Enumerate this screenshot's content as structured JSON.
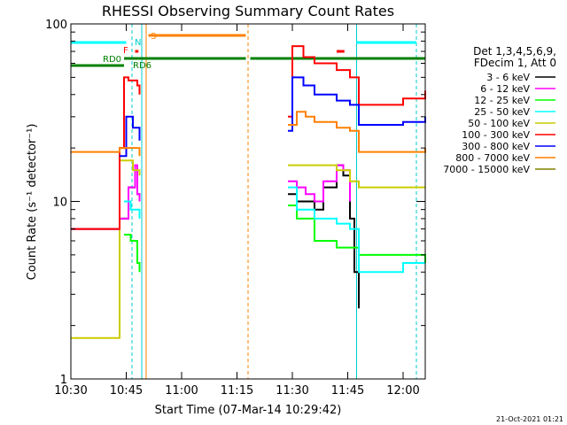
{
  "chart_data": {
    "type": "line",
    "title": "RHESSI Observing Summary Count Rates",
    "xlabel": "Start Time (07-Mar-14 10:29:42)",
    "ylabel": "Count Rate (s⁻¹ detector⁻¹)",
    "yscale": "log",
    "ylim": [
      1,
      100
    ],
    "xlim_minutes": [
      10.5,
      12.1
    ],
    "x_ticks": [
      {
        "label": "10:30",
        "t": 10.5
      },
      {
        "label": "10:45",
        "t": 10.75
      },
      {
        "label": "11:00",
        "t": 11.0
      },
      {
        "label": "11:15",
        "t": 11.25
      },
      {
        "label": "11:30",
        "t": 11.5
      },
      {
        "label": "11:45",
        "t": 11.75
      },
      {
        "label": "12:00",
        "t": 12.0
      }
    ],
    "y_ticks": [
      {
        "label": "1",
        "v": 1
      },
      {
        "label": "10",
        "v": 10
      },
      {
        "label": "100",
        "v": 100
      }
    ],
    "legend_header": [
      "Det 1,3,4,5,6,9,",
      "FDecim 1, Att 0"
    ],
    "legend_placement": "right",
    "series": [
      {
        "name": "3 - 6 keV",
        "color": "#000000",
        "x": [
          10.5,
          10.7,
          10.72,
          10.76,
          10.79,
          10.8,
          10.81,
          11.48,
          11.52,
          11.6,
          11.64,
          11.7,
          11.73,
          11.76,
          11.78,
          11.8
        ],
        "y": [
          7,
          7,
          8,
          12,
          15,
          11,
          10,
          11,
          10,
          9,
          12,
          16,
          14,
          8,
          4,
          2.5
        ]
      },
      {
        "name": "6 - 12 keV",
        "color": "#ff00ff",
        "x": [
          10.5,
          10.7,
          10.72,
          10.76,
          10.79,
          10.8,
          10.81,
          11.48,
          11.52,
          11.56,
          11.6,
          11.64,
          11.7,
          11.73,
          11.76
        ],
        "y": [
          7,
          7,
          8,
          12,
          16,
          11,
          10,
          13,
          12,
          11,
          10,
          13,
          16,
          15,
          10
        ]
      },
      {
        "name": "12 - 25 keV",
        "color": "#00ff00",
        "x": [
          10.74,
          10.77,
          10.8,
          10.81,
          11.48,
          11.52,
          11.6,
          11.7,
          11.76,
          11.8,
          12.1
        ],
        "y": [
          6.5,
          6,
          4.5,
          4,
          9.5,
          8,
          6,
          5.5,
          5.5,
          5,
          4.5
        ]
      },
      {
        "name": "25 - 50 keV",
        "color": "#00ffff",
        "x": [
          10.74,
          10.77,
          10.8,
          10.81,
          11.48,
          11.52,
          11.6,
          11.7,
          11.76,
          11.8,
          12.0,
          12.1
        ],
        "y": [
          10,
          9,
          9,
          8,
          12,
          9,
          8,
          7.5,
          7,
          4,
          4.5,
          4.5
        ]
      },
      {
        "name": "50 - 100 keV",
        "color": "#cccc00",
        "x": [
          10.5,
          10.7,
          10.72,
          10.75,
          10.78,
          10.81,
          11.48,
          11.55,
          11.6,
          11.7,
          11.76,
          11.8,
          12.0,
          12.1
        ],
        "y": [
          1.7,
          1.7,
          17,
          17,
          15,
          14,
          16,
          16,
          16,
          15,
          13,
          12,
          12,
          12
        ]
      },
      {
        "name": "100 - 300 keV",
        "color": "#ff0000",
        "x": [
          10.5,
          10.7,
          10.72,
          10.74,
          10.76,
          10.8,
          10.81,
          11.48,
          11.5,
          11.55,
          11.6,
          11.7,
          11.76,
          11.8,
          12.0,
          12.1
        ],
        "y": [
          7,
          7,
          20,
          50,
          48,
          45,
          40,
          30,
          75,
          65,
          60,
          55,
          50,
          35,
          38,
          42
        ]
      },
      {
        "name": "300 - 800 keV",
        "color": "#0000ff",
        "x": [
          10.72,
          10.75,
          10.78,
          10.81,
          11.48,
          11.5,
          11.55,
          11.6,
          11.7,
          11.76,
          11.8,
          12.0,
          12.1
        ],
        "y": [
          18,
          30,
          26,
          22,
          25,
          50,
          45,
          40,
          37,
          35,
          27,
          28,
          30
        ]
      },
      {
        "name": "800 - 7000 keV",
        "color": "#ff8000",
        "x": [
          10.5,
          10.7,
          10.72,
          10.76,
          10.81,
          11.48,
          11.52,
          11.56,
          11.6,
          11.7,
          11.76,
          11.8,
          12.0,
          12.1
        ],
        "y": [
          19,
          19,
          20,
          20,
          18,
          27,
          32,
          30,
          28,
          26,
          25,
          19,
          19,
          20
        ]
      },
      {
        "name": "7000 - 15000 keV",
        "color": "#808000",
        "x": [],
        "y": []
      }
    ],
    "annotations": [
      {
        "label": "RD0",
        "color": "#008000"
      },
      {
        "label": "RD6",
        "color": "#008000"
      },
      {
        "label": "F",
        "color": "#ff0000"
      },
      {
        "label": "N",
        "color": "#00cccc"
      },
      {
        "label": "S",
        "color": "#ff8000"
      }
    ]
  },
  "footer": {
    "timestamp": "21-Oct-2021 01:21"
  }
}
